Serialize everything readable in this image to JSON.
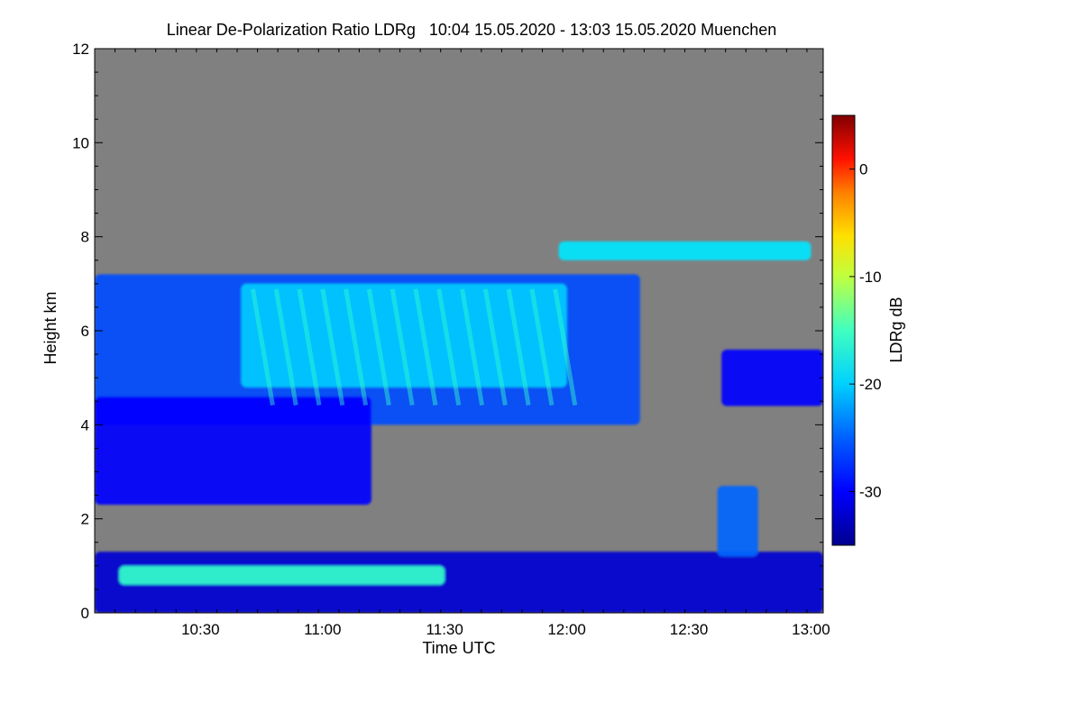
{
  "chart_data": {
    "type": "heatmap",
    "title": "Linear De-Polarization Ratio LDRg   10:04 15.05.2020 - 13:03 15.05.2020 Muenchen",
    "xlabel": "Time UTC",
    "ylabel": "Height km",
    "xlim": [
      "10:04",
      "13:03"
    ],
    "ylim": [
      0,
      12
    ],
    "x_ticks": [
      "10:30",
      "11:00",
      "11:30",
      "12:00",
      "12:30",
      "13:00"
    ],
    "y_ticks": [
      0,
      2,
      4,
      6,
      8,
      10,
      12
    ],
    "colorbar": {
      "label": "LDRg dB",
      "range": [
        -35,
        5
      ],
      "ticks": [
        0,
        -10,
        -20,
        -30
      ]
    },
    "colors": {
      "no_signal": "#808080",
      "colormap": [
        "#00008f",
        "#0000ff",
        "#0080ff",
        "#00ffff",
        "#80ff80",
        "#ffff00",
        "#ff8000",
        "#ff0000",
        "#800000"
      ]
    },
    "regions": [
      {
        "name": "mid-level cloud body",
        "t_start": "10:04",
        "t_end": "12:18",
        "h_bottom": 4.0,
        "h_top": 7.2,
        "ldr_db": -27
      },
      {
        "name": "cloud top streaks",
        "t_start": "10:40",
        "t_end": "12:00",
        "h_bottom": 4.8,
        "h_top": 7.0,
        "ldr_db": -22
      },
      {
        "name": "lower cloud layer",
        "t_start": "10:04",
        "t_end": "11:12",
        "h_bottom": 2.3,
        "h_top": 4.6,
        "ldr_db": -30
      },
      {
        "name": "boundary layer",
        "t_start": "10:04",
        "t_end": "13:03",
        "h_bottom": 0.0,
        "h_top": 1.3,
        "ldr_db": -32
      },
      {
        "name": "melting layer band",
        "t_start": "10:10",
        "t_end": "11:30",
        "h_bottom": 0.6,
        "h_top": 1.0,
        "ldr_db": -18
      },
      {
        "name": "high thin cirrus",
        "t_start": "11:58",
        "t_end": "13:00",
        "h_bottom": 7.5,
        "h_top": 7.9,
        "ldr_db": -21
      },
      {
        "name": "late cloud patch",
        "t_start": "12:38",
        "t_end": "13:03",
        "h_bottom": 4.4,
        "h_top": 5.6,
        "ldr_db": -30
      },
      {
        "name": "convective plume",
        "t_start": "12:37",
        "t_end": "12:47",
        "h_bottom": 1.2,
        "h_top": 2.7,
        "ldr_db": -26
      }
    ]
  }
}
